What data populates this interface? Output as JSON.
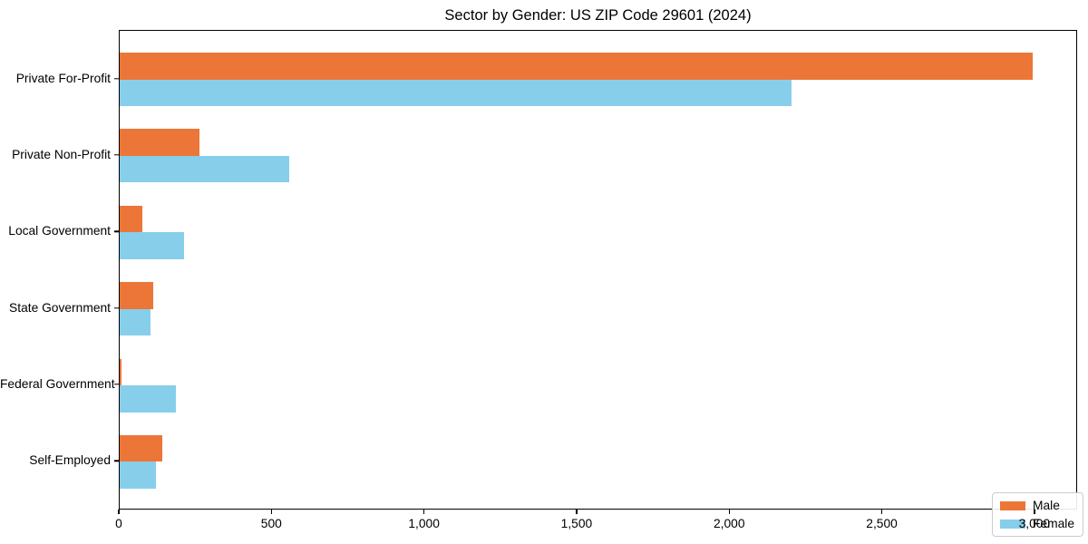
{
  "title": "Sector by Gender: US ZIP Code 29601 (2024)",
  "chart_data": {
    "type": "bar",
    "orientation": "horizontal",
    "title": "Sector by Gender: US ZIP Code 29601 (2024)",
    "categories": [
      "Private For-Profit",
      "Private Non-Profit",
      "Local Government",
      "State Government",
      "Federal Government",
      "Self-Employed"
    ],
    "series": [
      {
        "name": "Male",
        "color": "#ec7638",
        "values": [
          2990,
          260,
          75,
          110,
          5,
          140
        ]
      },
      {
        "name": "Female",
        "color": "#87ceeb",
        "values": [
          2200,
          555,
          210,
          100,
          185,
          120
        ]
      }
    ],
    "xlabel": "",
    "ylabel": "",
    "xlim": [
      0,
      3140
    ],
    "xticks": {
      "values": [
        0,
        500,
        1000,
        1500,
        2000,
        2500,
        3000
      ],
      "labels": [
        "0",
        "500",
        "1,000",
        "1,500",
        "2,000",
        "2,500",
        "3,000"
      ]
    },
    "grid": false,
    "bar_height_fraction": 0.35,
    "legend": {
      "position": "lower right",
      "entries": [
        "Male",
        "Female"
      ]
    }
  },
  "colors": {
    "male": "#ec7638",
    "female": "#87ceeb",
    "spine": "#000000",
    "background": "#ffffff",
    "legend_border": "#cccccc"
  }
}
